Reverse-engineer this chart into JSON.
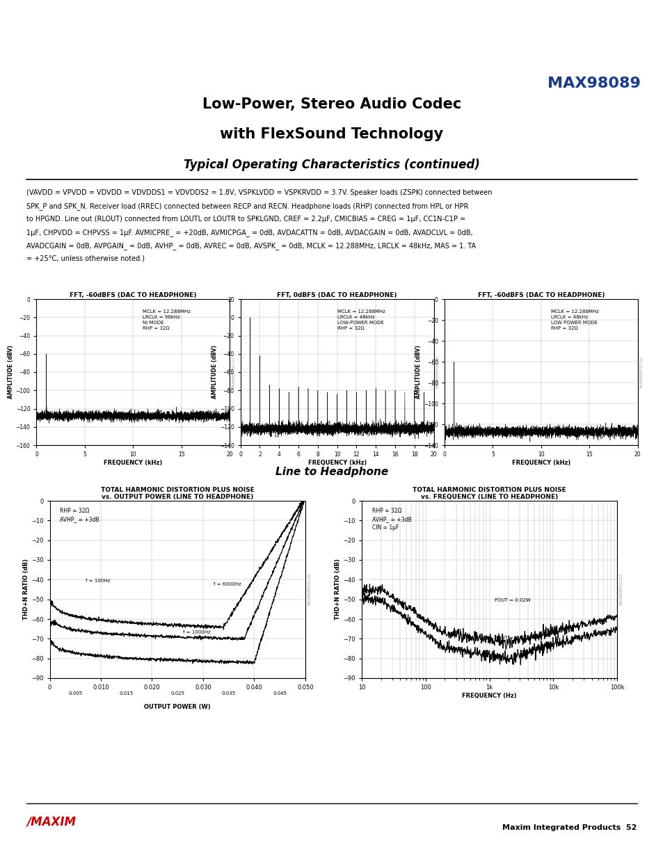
{
  "title_company": "MAX98089",
  "title_main_line1": "Low-Power, Stereo Audio Codec",
  "title_main_line2": "with FlexSound Technology",
  "title_section": "Typical Operating Characteristics (continued)",
  "condition_text": "(VAVDD = VPVDD = VDVDD = VDVDDS1 = VDVDDS2 = 1.8V, VSPKLVDD = VSPKRVDD = 3.7V. Speaker loads (ZSPK) connected between SPK_P and SPK_N. Receiver load (RREC) connected between RECP and RECN. Headphone loads (RHP) connected from HPL or HPR to HPGND. Line out (RLOUT) connected from LOUTL or LOUTR to SPKLGND, CREF = 2.2μF, CMICBIAS = CREG = 1μF, CC1N-C1P = 1μF, CHPVDD = CHPVSS = 1μF. AVMICPRE_ = +20dB, AVMICPGA_ = 0dB, AVDACATTN = 0dB, AVDACGAIN = 0dB, AVADCLVL = 0dB, AVADCGAIN = 0dB, AVPGAIN_ = 0dB, AVHP_ = 0dB, AVREC = 0dB, AVSPK_ = 0dB, MCLK = 12.288MHz, LRCLK = 48kHz, MAS = 1. TA = +25°C, unless otherwise noted.)",
  "section_label": "Line to Headphone",
  "page_footer": "Maxim Integrated Products  52",
  "plot1_title": "FFT, -60dBFS (DAC TO HEADPHONE)",
  "plot1_xlabel": "FREQUENCY (kHz)",
  "plot1_ylabel": "AMPLITUDE (dBV)",
  "plot1_xlim": [
    0,
    20
  ],
  "plot1_ylim": [
    -160,
    0
  ],
  "plot1_yticks": [
    0,
    -20,
    -40,
    -60,
    -80,
    -100,
    -120,
    -140,
    -160
  ],
  "plot1_xticks": [
    0,
    5,
    10,
    15,
    20
  ],
  "plot1_annotation": "MCLK = 12.288MHz\nLRCLK = 96kHz\nNI MODE\nRHP = 32Ω",
  "plot2_title": "FFT, 0dBFS (DAC TO HEADPHONE)",
  "plot2_xlabel": "FREQUENCY (kHz)",
  "plot2_ylabel": "AMPLITUDE (dBV)",
  "plot2_xlim": [
    0,
    20
  ],
  "plot2_ylim": [
    -140,
    20
  ],
  "plot2_yticks": [
    20,
    0,
    -20,
    -40,
    -60,
    -80,
    -100,
    -120,
    -140
  ],
  "plot2_xticks": [
    0,
    2,
    4,
    6,
    8,
    10,
    12,
    14,
    16,
    18,
    20
  ],
  "plot2_annotation": "MCLK = 12.288MHz\nLRCLK = 48kHz\nLOW-POWER MODE\nRHP = 32Ω",
  "plot3_title": "FFT, -60dBFS (DAC TO HEADPHONE)",
  "plot3_xlabel": "FREQUENCY (kHz)",
  "plot3_ylabel": "AMPLITUDE (dBV)",
  "plot3_xlim": [
    0,
    20
  ],
  "plot3_ylim": [
    -140,
    0
  ],
  "plot3_yticks": [
    0,
    -20,
    -40,
    -60,
    -80,
    -100,
    -120,
    -140
  ],
  "plot3_xticks": [
    0,
    5,
    10,
    15,
    20
  ],
  "plot3_annotation": "MCLK = 12.288MHz\nLRCLK = 48kHz\nLOW POWER MODE\nRHP = 32Ω",
  "plot4_title1": "TOTAL HARMONIC DISTORTION PLUS NOISE",
  "plot4_title2": "vs. OUTPUT POWER (LINE TO HEADPHONE)",
  "plot4_xlabel": "OUTPUT POWER (W)",
  "plot4_ylabel": "THD+N RATIO (dB)",
  "plot4_xlim": [
    0,
    0.05
  ],
  "plot4_ylim": [
    -90,
    0
  ],
  "plot4_yticks": [
    0,
    -10,
    -20,
    -30,
    -40,
    -50,
    -60,
    -70,
    -80,
    -90
  ],
  "plot4_xticks": [
    0,
    0.01,
    0.02,
    0.03,
    0.04,
    0.05
  ],
  "plot4_xticks2": [
    0.005,
    0.015,
    0.025,
    0.035,
    0.045
  ],
  "plot4_annotation": "RHP = 32Ω\nAVHP_ = +3dB",
  "plot5_title1": "TOTAL HARMONIC DISTORTION PLUS NOISE",
  "plot5_title2": "vs. FREQUENCY (LINE TO HEADPHONE)",
  "plot5_xlabel": "FREQUENCY (Hz)",
  "plot5_ylabel": "THD+N RATIO (dB)",
  "plot5_xlim_log": [
    10,
    100000
  ],
  "plot5_ylim": [
    -90,
    0
  ],
  "plot5_yticks": [
    0,
    -10,
    -20,
    -30,
    -40,
    -50,
    -60,
    -70,
    -80,
    -90
  ],
  "plot5_annotation": "RHP = 32Ω\nAVHP_ = +3dB\nCIN = 1μF",
  "bg_color": "#ffffff",
  "plot_bg_color": "#ffffff",
  "maxim_red": "#1a3a8a",
  "text_color": "#000000",
  "footer_red": "#cc0000"
}
